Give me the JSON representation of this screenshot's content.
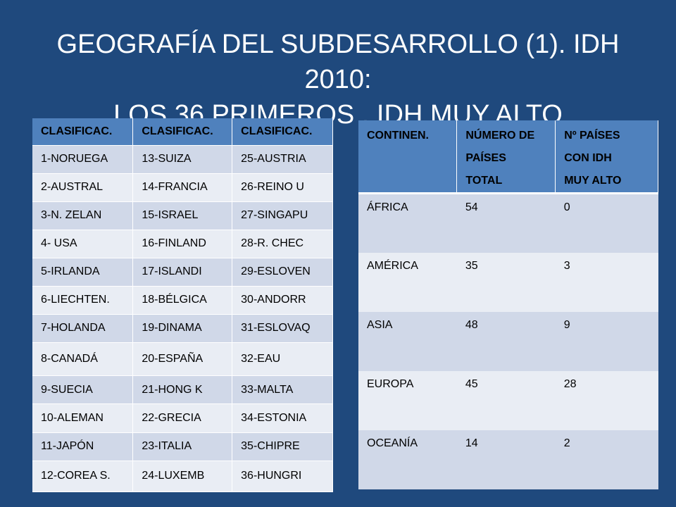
{
  "title": {
    "line1": "GEOGRAFÍA DEL SUBDESARROLLO (1). IDH 2010:",
    "line2": "LOS 36 PRIMEROS . IDH MUY ALTO"
  },
  "ranking_table": {
    "headers": [
      "CLASIFICAC.",
      "CLASIFICAC.",
      "CLASIFICAC."
    ],
    "rows": [
      [
        "1-NORUEGA",
        "13-SUIZA",
        "25-AUSTRIA"
      ],
      [
        "2-AUSTRAL",
        "14-FRANCIA",
        "26-REINO U"
      ],
      [
        "3-N. ZELAN",
        "15-ISRAEL",
        "27-SINGAPU"
      ],
      [
        "4- USA",
        "16-FINLAND",
        "28-R. CHEC"
      ],
      [
        "5-IRLANDA",
        "17-ISLANDI",
        "29-ESLOVEN"
      ],
      [
        "6-LIECHTEN.",
        "18-BÉLGICA",
        "30-ANDORR"
      ],
      [
        "7-HOLANDA",
        "19-DINAMA",
        "31-ESLOVAQ"
      ],
      [
        "8-CANADÁ",
        "20-ESPAÑA",
        "32-EAU"
      ],
      [
        "9-SUECIA",
        "21-HONG K",
        "33-MALTA"
      ],
      [
        "10-ALEMAN",
        "22-GRECIA",
        "34-ESTONIA"
      ],
      [
        "11-JAPÓN",
        "23-ITALIA",
        "35-CHIPRE"
      ],
      [
        "12-COREA S.",
        "24-LUXEMB",
        "36-HUNGRI"
      ]
    ]
  },
  "continents_table": {
    "headers": [
      [
        "CONTINEN."
      ],
      [
        "NÚMERO DE",
        "PAÍSES",
        "TOTAL"
      ],
      [
        "Nº PAÍSES",
        "CON IDH",
        "MUY ALTO"
      ]
    ],
    "rows": [
      [
        "ÁFRICA",
        "54",
        "0"
      ],
      [
        "AMÉRICA",
        "35",
        "3"
      ],
      [
        "ASIA",
        "48",
        "9"
      ],
      [
        "EUROPA",
        "45",
        "28"
      ],
      [
        "OCEANÍA",
        "14",
        "2"
      ]
    ]
  },
  "colors": {
    "background": "#1f497d",
    "header": "#4f81bd",
    "row_odd": "#d0d8e8",
    "row_even": "#e9edf4"
  }
}
